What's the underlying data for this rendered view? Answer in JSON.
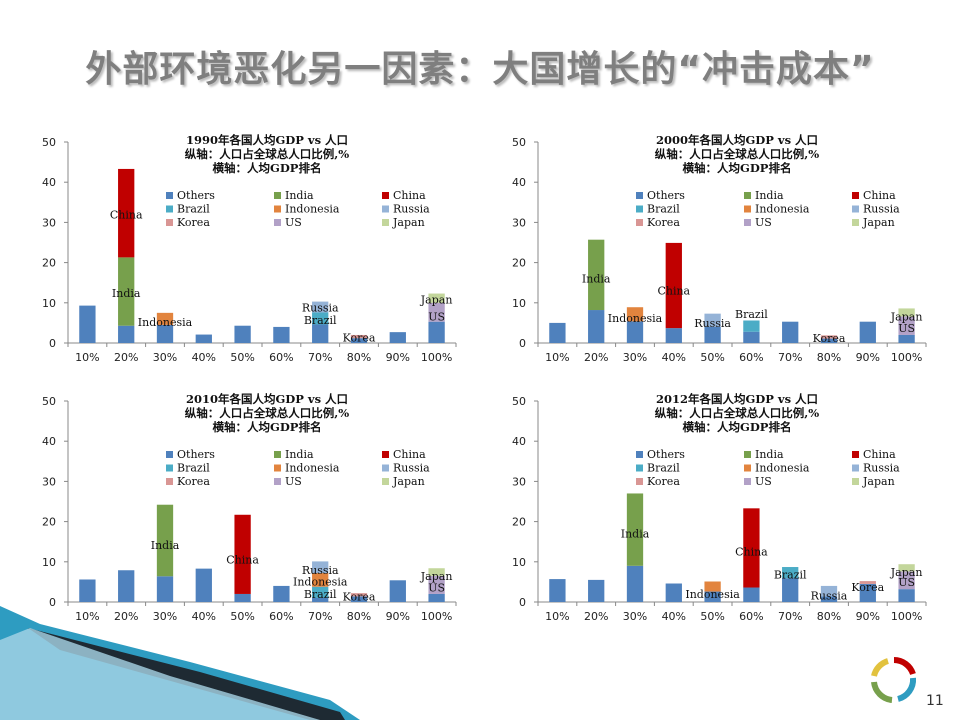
{
  "slide": {
    "title": "外部环境恶化另一因素：大国增长的“冲击成本”",
    "page_number": "11"
  },
  "colors": {
    "Others": "#4f81bd",
    "India": "#77a04c",
    "China": "#c00000",
    "Brazil": "#4bacc6",
    "Indonesia": "#e2843e",
    "Russia": "#95b3d7",
    "Korea": "#d99694",
    "US": "#b2a1c7",
    "Japan": "#c3d69b",
    "title_text": "#7f7f7f",
    "axis": "#888888",
    "accent_teal": "#2e9cc1"
  },
  "legend_order": [
    "Others",
    "India",
    "China",
    "Brazil",
    "Indonesia",
    "Russia",
    "Korea",
    "US",
    "Japan"
  ],
  "chart_data": [
    {
      "type": "bar",
      "stacked": true,
      "title_lines": [
        "1990年各国人均GDP vs 人口",
        "纵轴：人口占全球总人口比例,%",
        "横轴：人均GDP排名"
      ],
      "categories": [
        "10%",
        "20%",
        "30%",
        "40%",
        "50%",
        "60%",
        "70%",
        "80%",
        "90%",
        "100%"
      ],
      "ylim": [
        0,
        50
      ],
      "yticks": [
        0,
        10,
        20,
        30,
        40,
        50
      ],
      "grid": false,
      "legend": "top",
      "series": [
        {
          "name": "Others",
          "values": [
            9.3,
            4.3,
            4.5,
            2.1,
            4.3,
            4.0,
            4.6,
            1.2,
            2.7,
            5.3
          ]
        },
        {
          "name": "India",
          "values": [
            0,
            17.0,
            0,
            0,
            0,
            0,
            0,
            0,
            0,
            0
          ]
        },
        {
          "name": "China",
          "values": [
            0,
            22.0,
            0,
            0,
            0,
            0,
            0,
            0,
            0,
            0
          ]
        },
        {
          "name": "Brazil",
          "values": [
            0,
            0,
            0,
            0,
            0,
            0,
            3.0,
            0,
            0,
            0
          ]
        },
        {
          "name": "Indonesia",
          "values": [
            0,
            0,
            3.0,
            0,
            0,
            0,
            0,
            0,
            0,
            0
          ]
        },
        {
          "name": "Russia",
          "values": [
            0,
            0,
            0,
            0,
            0,
            0,
            2.7,
            0,
            0,
            0
          ]
        },
        {
          "name": "Korea",
          "values": [
            0,
            0,
            0,
            0,
            0,
            0,
            0,
            0.8,
            0,
            0
          ]
        },
        {
          "name": "US",
          "values": [
            0,
            0,
            0,
            0,
            0,
            0,
            0,
            0,
            0,
            4.7
          ]
        },
        {
          "name": "Japan",
          "values": [
            0,
            0,
            0,
            0,
            0,
            0,
            0,
            0,
            0,
            2.3
          ]
        }
      ],
      "annotations": [
        {
          "text": "China",
          "category": "20%",
          "y": 32
        },
        {
          "text": "India",
          "category": "20%",
          "y": 12.5
        },
        {
          "text": "Indonesia",
          "category": "30%",
          "y": 5.2
        },
        {
          "text": "Russia",
          "category": "70%",
          "y": 8.8
        },
        {
          "text": "Brazil",
          "category": "70%",
          "y": 5.7
        },
        {
          "text": "Korea",
          "category": "80%",
          "y": 1.4
        },
        {
          "text": "Japan",
          "category": "100%",
          "y": 10.8
        },
        {
          "text": "US",
          "category": "100%",
          "y": 6.6
        }
      ]
    },
    {
      "type": "bar",
      "stacked": true,
      "title_lines": [
        "2000年各国人均GDP vs 人口",
        "纵轴：人口占全球总人口比例,%",
        "横轴：人均GDP排名"
      ],
      "categories": [
        "10%",
        "20%",
        "30%",
        "40%",
        "50%",
        "60%",
        "70%",
        "80%",
        "90%",
        "100%"
      ],
      "ylim": [
        0,
        50
      ],
      "yticks": [
        0,
        10,
        20,
        30,
        40,
        50
      ],
      "grid": false,
      "legend": "top",
      "series": [
        {
          "name": "Others",
          "values": [
            5.0,
            8.2,
            5.4,
            3.7,
            4.0,
            2.8,
            5.3,
            1.1,
            5.3,
            2.0
          ]
        },
        {
          "name": "India",
          "values": [
            0,
            17.5,
            0,
            0,
            0,
            0,
            0,
            0,
            0,
            0
          ]
        },
        {
          "name": "China",
          "values": [
            0,
            0,
            0,
            21.2,
            0,
            0,
            0,
            0,
            0,
            0
          ]
        },
        {
          "name": "Brazil",
          "values": [
            0,
            0,
            0,
            0,
            0,
            2.8,
            0,
            0,
            0,
            0
          ]
        },
        {
          "name": "Indonesia",
          "values": [
            0,
            0,
            3.5,
            0,
            0,
            0,
            0,
            0,
            0,
            0
          ]
        },
        {
          "name": "Russia",
          "values": [
            0,
            0,
            0,
            0,
            3.3,
            0,
            0,
            0,
            0,
            0
          ]
        },
        {
          "name": "Korea",
          "values": [
            0,
            0,
            0,
            0,
            0,
            0,
            0,
            0.8,
            0,
            0
          ]
        },
        {
          "name": "US",
          "values": [
            0,
            0,
            0,
            0,
            0,
            0,
            0,
            0,
            0,
            4.6
          ]
        },
        {
          "name": "Japan",
          "values": [
            0,
            0,
            0,
            0,
            0,
            0,
            0,
            0,
            0,
            2.0
          ]
        }
      ],
      "annotations": [
        {
          "text": "India",
          "category": "20%",
          "y": 16.0
        },
        {
          "text": "China",
          "category": "40%",
          "y": 13.0
        },
        {
          "text": "Indonesia",
          "category": "30%",
          "y": 6.2
        },
        {
          "text": "Russia",
          "category": "50%",
          "y": 5.0
        },
        {
          "text": "Brazil",
          "category": "60%",
          "y": 7.2
        },
        {
          "text": "Korea",
          "category": "80%",
          "y": 1.2
        },
        {
          "text": "Japan",
          "category": "100%",
          "y": 6.6
        },
        {
          "text": "US",
          "category": "100%",
          "y": 3.7
        }
      ]
    },
    {
      "type": "bar",
      "stacked": true,
      "title_lines": [
        "2010年各国人均GDP vs 人口",
        "纵轴：人口占全球总人口比例,%",
        "横轴：人均GDP排名"
      ],
      "categories": [
        "10%",
        "20%",
        "30%",
        "40%",
        "50%",
        "60%",
        "70%",
        "80%",
        "90%",
        "100%"
      ],
      "ylim": [
        0,
        50
      ],
      "yticks": [
        0,
        10,
        20,
        30,
        40,
        50
      ],
      "grid": false,
      "legend": "top",
      "series": [
        {
          "name": "Others",
          "values": [
            5.6,
            7.9,
            6.4,
            8.3,
            2.0,
            4.0,
            1.0,
            1.4,
            5.4,
            2.0
          ]
        },
        {
          "name": "India",
          "values": [
            0,
            0,
            17.8,
            0,
            0,
            0,
            0,
            0,
            0,
            0
          ]
        },
        {
          "name": "China",
          "values": [
            0,
            0,
            0,
            0,
            19.7,
            0,
            0,
            0,
            0,
            0
          ]
        },
        {
          "name": "Brazil",
          "values": [
            0,
            0,
            0,
            0,
            0,
            0,
            2.8,
            0,
            0,
            0
          ]
        },
        {
          "name": "Indonesia",
          "values": [
            0,
            0,
            0,
            0,
            0,
            0,
            3.4,
            0,
            0,
            0
          ]
        },
        {
          "name": "Russia",
          "values": [
            0,
            0,
            0,
            0,
            0,
            0,
            2.9,
            0,
            0,
            0
          ]
        },
        {
          "name": "Korea",
          "values": [
            0,
            0,
            0,
            0,
            0,
            0,
            0,
            0.8,
            0,
            0
          ]
        },
        {
          "name": "US",
          "values": [
            0,
            0,
            0,
            0,
            0,
            0,
            0,
            0,
            0,
            4.5
          ]
        },
        {
          "name": "Japan",
          "values": [
            0,
            0,
            0,
            0,
            0,
            0,
            0,
            0,
            0,
            1.9
          ]
        }
      ],
      "annotations": [
        {
          "text": "India",
          "category": "30%",
          "y": 14.2
        },
        {
          "text": "China",
          "category": "50%",
          "y": 10.6
        },
        {
          "text": "Russia",
          "category": "70%",
          "y": 8.0
        },
        {
          "text": "Indonesia",
          "category": "70%",
          "y": 5.1
        },
        {
          "text": "Brazil",
          "category": "70%",
          "y": 2.0
        },
        {
          "text": "Korea",
          "category": "80%",
          "y": 1.4
        },
        {
          "text": "Japan",
          "category": "100%",
          "y": 6.5
        },
        {
          "text": "US",
          "category": "100%",
          "y": 3.6
        }
      ]
    },
    {
      "type": "bar",
      "stacked": true,
      "title_lines": [
        "2012年各国人均GDP vs 人口",
        "纵轴：人口占全球总人口比例,%",
        "横轴：人均GDP排名"
      ],
      "categories": [
        "10%",
        "20%",
        "30%",
        "40%",
        "50%",
        "60%",
        "70%",
        "80%",
        "90%",
        "100%"
      ],
      "ylim": [
        0,
        50
      ],
      "yticks": [
        0,
        10,
        20,
        30,
        40,
        50
      ],
      "grid": false,
      "legend": "top",
      "series": [
        {
          "name": "Others",
          "values": [
            5.7,
            5.5,
            9.0,
            4.6,
            2.6,
            3.6,
            5.9,
            1.4,
            4.5,
            3.2
          ]
        },
        {
          "name": "India",
          "values": [
            0,
            0,
            18.0,
            0,
            0,
            0,
            0,
            0,
            0,
            0
          ]
        },
        {
          "name": "China",
          "values": [
            0,
            0,
            0,
            0,
            0,
            19.7,
            0,
            0,
            0,
            0
          ]
        },
        {
          "name": "Brazil",
          "values": [
            0,
            0,
            0,
            0,
            0,
            0,
            2.8,
            0,
            0,
            0
          ]
        },
        {
          "name": "Indonesia",
          "values": [
            0,
            0,
            0,
            0,
            2.5,
            0,
            0,
            0,
            0,
            0
          ]
        },
        {
          "name": "Russia",
          "values": [
            0,
            0,
            0,
            0,
            0,
            0,
            0,
            2.6,
            0,
            0
          ]
        },
        {
          "name": "Korea",
          "values": [
            0,
            0,
            0,
            0,
            0,
            0,
            0,
            0,
            0.7,
            0
          ]
        },
        {
          "name": "US",
          "values": [
            0,
            0,
            0,
            0,
            0,
            0,
            0,
            0,
            0,
            4.4
          ]
        },
        {
          "name": "Japan",
          "values": [
            0,
            0,
            0,
            0,
            0,
            0,
            0,
            0,
            0,
            1.8
          ]
        }
      ],
      "annotations": [
        {
          "text": "India",
          "category": "30%",
          "y": 17.0
        },
        {
          "text": "China",
          "category": "60%",
          "y": 12.6
        },
        {
          "text": "Brazil",
          "category": "70%",
          "y": 6.8
        },
        {
          "text": "Indonesia",
          "category": "50%",
          "y": 2.0
        },
        {
          "text": "Russia",
          "category": "80%",
          "y": 1.6
        },
        {
          "text": "Korea",
          "category": "90%",
          "y": 3.7
        },
        {
          "text": "Japan",
          "category": "100%",
          "y": 7.5
        },
        {
          "text": "US",
          "category": "100%",
          "y": 5.0
        }
      ]
    }
  ]
}
